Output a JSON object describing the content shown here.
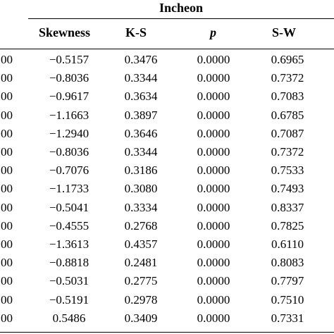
{
  "table": {
    "group_title": "Incheon",
    "headers": {
      "skewness": "Skewness",
      "ks": "K-S",
      "p": "p",
      "sw": "S-W"
    },
    "rows": [
      {
        "lead": "00",
        "skewness": "−0.5157",
        "ks": "0.3476",
        "p": "0.0000",
        "sw": "0.6965"
      },
      {
        "lead": "00",
        "skewness": "−0.8036",
        "ks": "0.3344",
        "p": "0.0000",
        "sw": "0.7372"
      },
      {
        "lead": "00",
        "skewness": "−0.9617",
        "ks": "0.3634",
        "p": "0.0000",
        "sw": "0.7083"
      },
      {
        "lead": "00",
        "skewness": "−1.1663",
        "ks": "0.3897",
        "p": "0.0000",
        "sw": "0.6785"
      },
      {
        "lead": "00",
        "skewness": "−1.2940",
        "ks": "0.3646",
        "p": "0.0000",
        "sw": "0.7087"
      },
      {
        "lead": "00",
        "skewness": "−0.8036",
        "ks": "0.3344",
        "p": "0.0000",
        "sw": "0.7372"
      },
      {
        "lead": "00",
        "skewness": "−0.7076",
        "ks": "0.3186",
        "p": "0.0000",
        "sw": "0.7533"
      },
      {
        "lead": "00",
        "skewness": "−1.1733",
        "ks": "0.3080",
        "p": "0.0000",
        "sw": "0.7493"
      },
      {
        "lead": "00",
        "skewness": "−0.5041",
        "ks": "0.3334",
        "p": "0.0000",
        "sw": "0.8337"
      },
      {
        "lead": "00",
        "skewness": "−0.4555",
        "ks": "0.2768",
        "p": "0.0000",
        "sw": "0.7825"
      },
      {
        "lead": "00",
        "skewness": "−1.3613",
        "ks": "0.4357",
        "p": "0.0000",
        "sw": "0.6110"
      },
      {
        "lead": "00",
        "skewness": "−0.8818",
        "ks": "0.2481",
        "p": "0.0000",
        "sw": "0.8083"
      },
      {
        "lead": "00",
        "skewness": "−0.5031",
        "ks": "0.2775",
        "p": "0.0000",
        "sw": "0.7797"
      },
      {
        "lead": "00",
        "skewness": "−0.5191",
        "ks": "0.2978",
        "p": "0.0000",
        "sw": "0.7510"
      },
      {
        "lead": "00",
        "skewness": "0.5486",
        "ks": "0.3409",
        "p": "0.0000",
        "sw": "0.7331"
      }
    ]
  }
}
